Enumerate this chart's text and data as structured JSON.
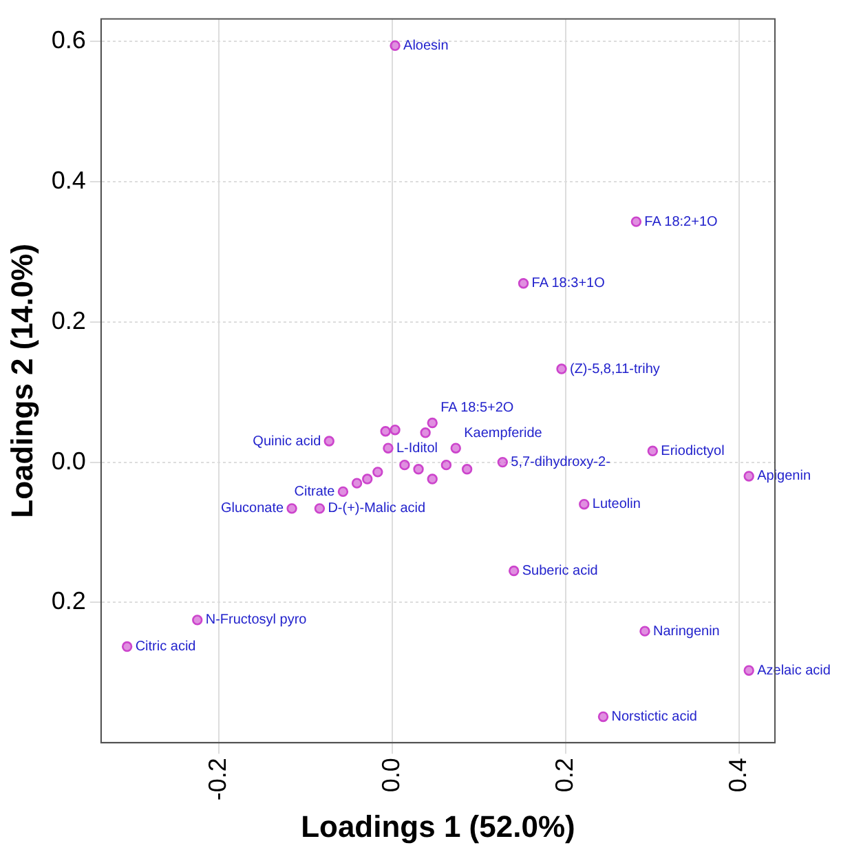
{
  "chart_data": {
    "type": "scatter",
    "xlabel": "Loadings 1 (52.0%)",
    "ylabel": "Loadings 2 (14.0%)",
    "xlim": [
      -0.336,
      0.441
    ],
    "ylim": [
      -0.4,
      0.632
    ],
    "xticks": [
      {
        "value": -0.2,
        "label": "-0.2"
      },
      {
        "value": 0,
        "label": "0.0"
      },
      {
        "value": 0.2,
        "label": "0.2"
      },
      {
        "value": 0.4,
        "label": "0.4"
      }
    ],
    "yticks": [
      {
        "value": -0.2,
        "label": "0.2"
      },
      {
        "value": 0,
        "label": "0.0"
      },
      {
        "value": 0.2,
        "label": "0.2"
      },
      {
        "value": 0.4,
        "label": "0.4"
      },
      {
        "value": 0.6,
        "label": "0.6"
      }
    ],
    "grid": true,
    "marker": "circle",
    "series": [
      {
        "color": "#cc44cc",
        "x": [
          0.003,
          0.281,
          0.151,
          0.195,
          0.3,
          0.411,
          0.221,
          0.14,
          0.291,
          0.411,
          0.243,
          -0.306,
          -0.225,
          -0.073,
          -0.116,
          -0.084,
          -0.057,
          -0.005,
          0.073,
          0.046,
          0.127,
          -0.008,
          0.003,
          0.038,
          0.014,
          0.03,
          -0.017,
          -0.029,
          -0.041,
          0.062,
          0.086,
          0.046
        ],
        "values": [
          0.594,
          0.343,
          0.255,
          0.133,
          0.016,
          -0.02,
          -0.06,
          -0.155,
          -0.241,
          -0.297,
          -0.363,
          -0.263,
          -0.225,
          0.03,
          -0.066,
          -0.066,
          -0.042,
          0.02,
          0.02,
          0.056,
          0.0,
          0.044,
          0.046,
          0.042,
          -0.004,
          -0.01,
          -0.014,
          -0.024,
          -0.03,
          -0.004,
          -0.01,
          -0.024
        ],
        "value_labels": [
          "Aloesin",
          "FA 18:2+1O",
          "FA 18:3+1O",
          "(Z)-5,8,11-trihy",
          "Eriodictyol",
          "Apigenin",
          "Luteolin",
          "Suberic acid",
          "Naringenin",
          "Azelaic acid",
          "Norstictic acid",
          "Citric acid",
          "N-Fructosyl pyro",
          "Quinic acid",
          "Gluconate",
          "D-(+)-Malic acid",
          "Citrate",
          "L-Iditol",
          "Kaempferide",
          "FA 18:5+2O",
          "5,7-dihydroxy-2-",
          null,
          null,
          null,
          null,
          null,
          null,
          null,
          null,
          null,
          null,
          null
        ]
      }
    ]
  }
}
